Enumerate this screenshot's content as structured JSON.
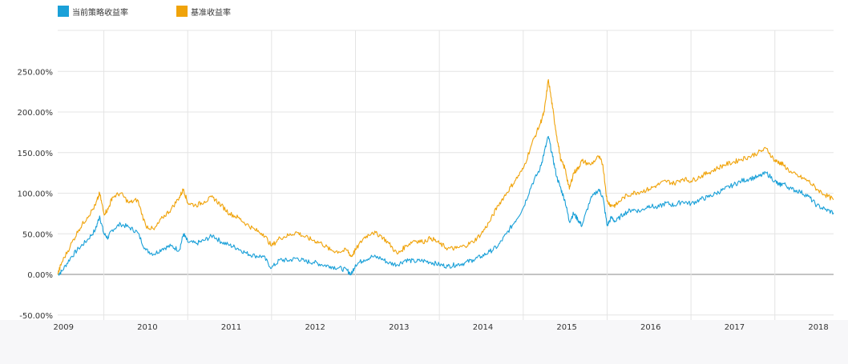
{
  "legend": [
    {
      "name": "当前策略收益率",
      "color": "#1aa0d8"
    },
    {
      "name": "基准收益率",
      "color": "#f0a30a"
    }
  ],
  "colors": {
    "grid": "#e4e4e4",
    "zero_line": "#8a8a8a",
    "bottom_band": "#f7f7f9"
  },
  "chart_data": {
    "type": "line",
    "title": "",
    "xlabel": "",
    "ylabel": "",
    "ylim": [
      -0.5,
      2.5
    ],
    "xlim": [
      2008.95,
      2018.2
    ],
    "grid": true,
    "legend_position": "top-left",
    "y_ticks": [
      {
        "value": -0.5,
        "label": "-50.00%"
      },
      {
        "value": 0,
        "label": "0.00%"
      },
      {
        "value": 0.5,
        "label": "50.00%"
      },
      {
        "value": 1.0,
        "label": "100.00%"
      },
      {
        "value": 1.5,
        "label": "150.00%"
      },
      {
        "value": 2.0,
        "label": "200.00%"
      },
      {
        "value": 2.5,
        "label": "250.00%"
      }
    ],
    "x_ticks": [
      {
        "value": 2009,
        "label": "2009"
      },
      {
        "value": 2010,
        "label": "2010"
      },
      {
        "value": 2011,
        "label": "2011"
      },
      {
        "value": 2012,
        "label": "2012"
      },
      {
        "value": 2013,
        "label": "2013"
      },
      {
        "value": 2014,
        "label": "2014"
      },
      {
        "value": 2015,
        "label": "2015"
      },
      {
        "value": 2016,
        "label": "2016"
      },
      {
        "value": 2017,
        "label": "2017"
      },
      {
        "value": 2018,
        "label": "2018"
      }
    ],
    "x_gridlines": [
      2009.5,
      2010.5,
      2011.5,
      2012.5,
      2013.5,
      2014.5,
      2015.5,
      2016.5,
      2017.5
    ],
    "series": [
      {
        "name": "当前策略收益率",
        "color": "#1aa0d8",
        "x": [
          2008.95,
          2009.0,
          2009.1,
          2009.2,
          2009.3,
          2009.4,
          2009.45,
          2009.5,
          2009.55,
          2009.6,
          2009.7,
          2009.8,
          2009.9,
          2010.0,
          2010.1,
          2010.2,
          2010.3,
          2010.4,
          2010.45,
          2010.5,
          2010.6,
          2010.7,
          2010.8,
          2010.9,
          2011.0,
          2011.1,
          2011.2,
          2011.3,
          2011.4,
          2011.5,
          2011.6,
          2011.7,
          2011.8,
          2011.9,
          2012.0,
          2012.1,
          2012.2,
          2012.3,
          2012.4,
          2012.45,
          2012.5,
          2012.6,
          2012.7,
          2012.8,
          2012.9,
          2013.0,
          2013.1,
          2013.2,
          2013.3,
          2013.4,
          2013.5,
          2013.6,
          2013.7,
          2013.8,
          2013.9,
          2014.0,
          2014.1,
          2014.2,
          2014.3,
          2014.4,
          2014.5,
          2014.6,
          2014.7,
          2014.75,
          2014.8,
          2014.85,
          2014.9,
          2014.95,
          2015.0,
          2015.05,
          2015.1,
          2015.15,
          2015.2,
          2015.3,
          2015.4,
          2015.45,
          2015.5,
          2015.55,
          2015.6,
          2015.7,
          2015.8,
          2015.9,
          2016.0,
          2016.1,
          2016.2,
          2016.3,
          2016.4,
          2016.5,
          2016.6,
          2016.7,
          2016.8,
          2016.9,
          2017.0,
          2017.1,
          2017.2,
          2017.3,
          2017.4,
          2017.5,
          2017.55,
          2017.6,
          2017.7,
          2017.8,
          2017.9,
          2018.0,
          2018.1,
          2018.2
        ],
        "y": [
          0.0,
          0.04,
          0.2,
          0.32,
          0.42,
          0.55,
          0.72,
          0.5,
          0.45,
          0.55,
          0.62,
          0.58,
          0.52,
          0.3,
          0.25,
          0.32,
          0.35,
          0.3,
          0.5,
          0.4,
          0.38,
          0.42,
          0.48,
          0.4,
          0.36,
          0.32,
          0.26,
          0.23,
          0.22,
          0.08,
          0.18,
          0.17,
          0.2,
          0.16,
          0.15,
          0.12,
          0.1,
          0.08,
          0.05,
          0.0,
          0.12,
          0.18,
          0.22,
          0.2,
          0.14,
          0.12,
          0.18,
          0.16,
          0.17,
          0.15,
          0.12,
          0.1,
          0.12,
          0.14,
          0.18,
          0.22,
          0.28,
          0.35,
          0.5,
          0.65,
          0.82,
          1.1,
          1.3,
          1.5,
          1.7,
          1.45,
          1.2,
          1.05,
          0.9,
          0.65,
          0.75,
          0.68,
          0.6,
          0.92,
          1.05,
          0.95,
          0.6,
          0.7,
          0.65,
          0.75,
          0.8,
          0.78,
          0.85,
          0.82,
          0.88,
          0.85,
          0.9,
          0.87,
          0.92,
          0.95,
          1.0,
          1.05,
          1.1,
          1.15,
          1.18,
          1.2,
          1.25,
          1.15,
          1.1,
          1.12,
          1.05,
          1.02,
          0.96,
          0.85,
          0.8,
          0.76
        ]
      },
      {
        "name": "基准收益率",
        "color": "#f0a30a",
        "x": [
          2008.95,
          2009.0,
          2009.1,
          2009.2,
          2009.3,
          2009.4,
          2009.45,
          2009.5,
          2009.55,
          2009.6,
          2009.7,
          2009.8,
          2009.9,
          2010.0,
          2010.1,
          2010.2,
          2010.3,
          2010.4,
          2010.45,
          2010.5,
          2010.6,
          2010.7,
          2010.8,
          2010.9,
          2011.0,
          2011.1,
          2011.2,
          2011.3,
          2011.4,
          2011.5,
          2011.6,
          2011.7,
          2011.8,
          2011.9,
          2012.0,
          2012.1,
          2012.2,
          2012.3,
          2012.4,
          2012.45,
          2012.5,
          2012.6,
          2012.7,
          2012.8,
          2012.9,
          2013.0,
          2013.1,
          2013.2,
          2013.3,
          2013.4,
          2013.5,
          2013.6,
          2013.7,
          2013.8,
          2013.9,
          2014.0,
          2014.1,
          2014.2,
          2014.3,
          2014.4,
          2014.5,
          2014.6,
          2014.7,
          2014.75,
          2014.8,
          2014.85,
          2014.9,
          2014.95,
          2015.0,
          2015.05,
          2015.1,
          2015.15,
          2015.2,
          2015.3,
          2015.4,
          2015.45,
          2015.5,
          2015.55,
          2015.6,
          2015.7,
          2015.8,
          2015.9,
          2016.0,
          2016.1,
          2016.2,
          2016.3,
          2016.4,
          2016.5,
          2016.6,
          2016.7,
          2016.8,
          2016.9,
          2017.0,
          2017.1,
          2017.2,
          2017.3,
          2017.4,
          2017.5,
          2017.55,
          2017.6,
          2017.7,
          2017.8,
          2017.9,
          2018.0,
          2018.1,
          2018.2
        ],
        "y": [
          0.0,
          0.15,
          0.35,
          0.55,
          0.7,
          0.85,
          1.0,
          0.75,
          0.8,
          0.95,
          1.0,
          0.88,
          0.92,
          0.6,
          0.55,
          0.7,
          0.8,
          0.95,
          1.05,
          0.88,
          0.85,
          0.9,
          0.95,
          0.85,
          0.75,
          0.7,
          0.62,
          0.55,
          0.5,
          0.35,
          0.45,
          0.48,
          0.52,
          0.46,
          0.42,
          0.38,
          0.3,
          0.28,
          0.3,
          0.22,
          0.3,
          0.45,
          0.52,
          0.48,
          0.38,
          0.25,
          0.35,
          0.42,
          0.4,
          0.45,
          0.38,
          0.32,
          0.32,
          0.35,
          0.4,
          0.5,
          0.65,
          0.85,
          1.0,
          1.15,
          1.3,
          1.6,
          1.85,
          2.0,
          2.4,
          2.05,
          1.7,
          1.4,
          1.3,
          1.05,
          1.25,
          1.3,
          1.4,
          1.35,
          1.45,
          1.35,
          0.9,
          0.85,
          0.85,
          0.95,
          1.0,
          1.02,
          1.05,
          1.1,
          1.15,
          1.12,
          1.18,
          1.15,
          1.2,
          1.25,
          1.3,
          1.35,
          1.38,
          1.42,
          1.45,
          1.5,
          1.55,
          1.4,
          1.38,
          1.35,
          1.25,
          1.2,
          1.15,
          1.05,
          0.98,
          0.92
        ]
      }
    ]
  }
}
